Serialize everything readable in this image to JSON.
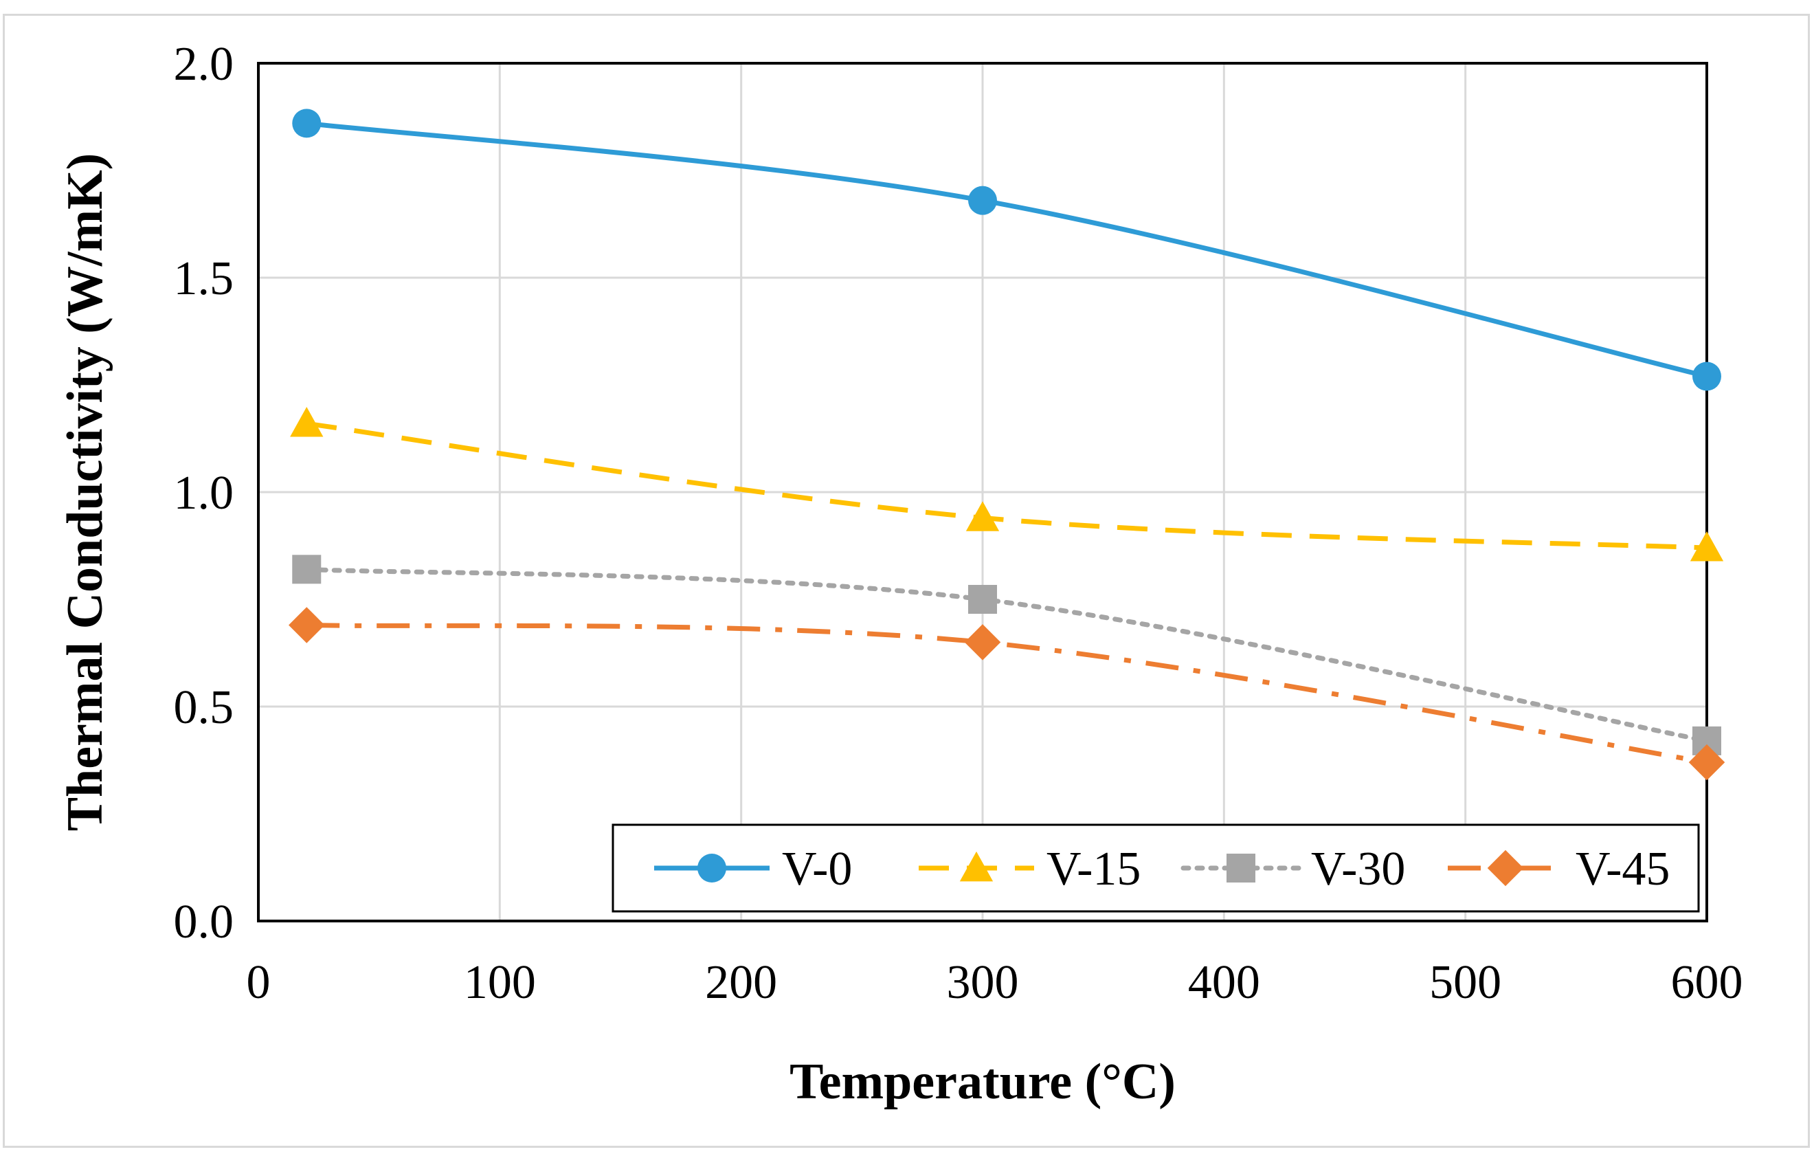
{
  "chart_data": {
    "type": "line",
    "xlabel": "Temperature (°C)",
    "ylabel": "Thermal Conductivity (W/mK)",
    "xlim": [
      0,
      600
    ],
    "ylim": [
      0,
      2.0
    ],
    "x_ticks": [
      "0",
      "100",
      "200",
      "300",
      "400",
      "500",
      "600"
    ],
    "y_ticks": [
      "0.0",
      "0.5",
      "1.0",
      "1.5",
      "2.0"
    ],
    "grid": true,
    "legend_position": "bottom-right",
    "series": [
      {
        "name": "V-0",
        "x": [
          20,
          300,
          600
        ],
        "y": [
          1.86,
          1.68,
          1.27
        ],
        "color": "#2e9bd6",
        "marker": "circle",
        "line_style": "solid",
        "smooth": true
      },
      {
        "name": "V-15",
        "x": [
          20,
          300,
          600
        ],
        "y": [
          1.16,
          0.94,
          0.87
        ],
        "color": "#ffc000",
        "marker": "triangle",
        "line_style": "dashed",
        "smooth": true
      },
      {
        "name": "V-30",
        "x": [
          20,
          300,
          600
        ],
        "y": [
          0.82,
          0.75,
          0.42
        ],
        "color": "#a5a5a5",
        "marker": "square",
        "line_style": "dotted",
        "smooth": true
      },
      {
        "name": "V-45",
        "x": [
          20,
          300,
          600
        ],
        "y": [
          0.69,
          0.65,
          0.37
        ],
        "color": "#ed7d31",
        "marker": "diamond",
        "line_style": "dash-dot",
        "smooth": true
      }
    ]
  }
}
